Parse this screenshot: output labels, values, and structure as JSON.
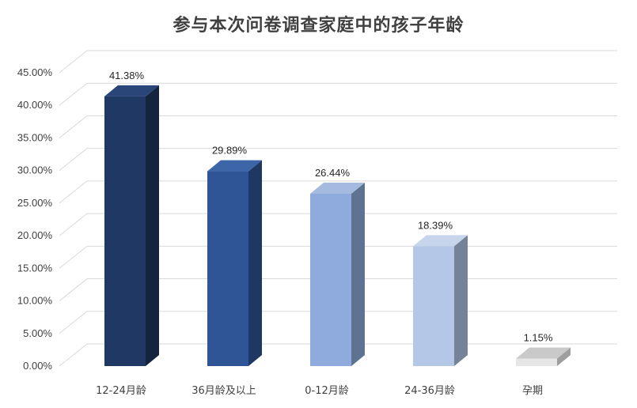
{
  "chart_data": {
    "type": "bar",
    "title": "参与本次问卷调查家庭中的孩子年龄",
    "categories": [
      "12-24月龄",
      "36月龄及以上",
      "0-12月龄",
      "24-36月龄",
      "孕期"
    ],
    "values": [
      41.38,
      29.89,
      26.44,
      18.39,
      1.15
    ],
    "value_labels": [
      "41.38%",
      "29.89%",
      "26.44%",
      "18.39%",
      "1.15%"
    ],
    "ylim": [
      0,
      45
    ],
    "yticks": [
      0,
      5,
      10,
      15,
      20,
      25,
      30,
      35,
      40,
      45
    ],
    "ytick_labels": [
      "0.00%",
      "5.00%",
      "10.00%",
      "15.00%",
      "20.00%",
      "25.00%",
      "30.00%",
      "35.00%",
      "40.00%",
      "45.00%"
    ],
    "xlabel": "",
    "ylabel": "",
    "grid": true,
    "legend": "none",
    "style": "3d-column",
    "colors": {
      "front": [
        "#203864",
        "#2F5597",
        "#8FAADC",
        "#B4C7E7",
        "#E7E6E6"
      ],
      "side": [
        "#14243F",
        "#1E3763",
        "#5E7391",
        "#748399",
        "#9E9E9E"
      ],
      "top": [
        "#2A4578",
        "#3D66A8",
        "#A4BADF",
        "#C6D4EC",
        "#C9C9C9"
      ],
      "grid": "#D9D9D9",
      "text": "#404040"
    }
  }
}
